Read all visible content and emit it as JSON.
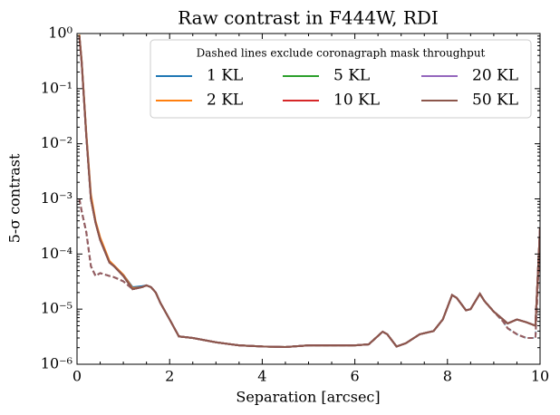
{
  "chart_data": {
    "type": "line",
    "title": "Raw contrast in F444W, RDI",
    "xlabel": "Separation [arcsec]",
    "ylabel": "5-σ contrast",
    "legend_title": "Dashed lines exclude coronagraph mask throughput",
    "legend_loc": "upper right",
    "legend_columns": 3,
    "log_y": true,
    "xlim": [
      0,
      10
    ],
    "xticks": [
      0,
      2,
      4,
      6,
      8,
      10
    ],
    "ylim": [
      1e-06,
      1
    ],
    "yticks": [
      {
        "value": 1e-06,
        "label": "10⁻⁶"
      },
      {
        "value": 1e-05,
        "label": "10⁻⁵"
      },
      {
        "value": 0.0001,
        "label": "10⁻⁴"
      },
      {
        "value": 0.001,
        "label": "10⁻³"
      },
      {
        "value": 0.01,
        "label": "10⁻²"
      },
      {
        "value": 0.1,
        "label": "10⁻¹"
      },
      {
        "value": 1,
        "label": "10⁰"
      }
    ],
    "x": [
      0.05,
      0.1,
      0.2,
      0.3,
      0.4,
      0.5,
      0.7,
      0.8,
      1.0,
      1.2,
      1.4,
      1.5,
      1.6,
      1.7,
      1.8,
      2.0,
      2.2,
      2.5,
      3.0,
      3.5,
      4.0,
      4.5,
      5.0,
      5.5,
      6.0,
      6.3,
      6.6,
      6.7,
      6.9,
      7.1,
      7.4,
      7.7,
      7.9,
      8.1,
      8.2,
      8.4,
      8.5,
      8.7,
      8.8,
      9.0,
      9.2,
      9.3,
      9.5,
      9.7,
      9.9,
      10.0
    ],
    "series": [
      {
        "name": "1 KL",
        "color": "#1f77b4",
        "values": [
          0.95,
          0.32,
          0.015,
          0.0011,
          0.00038,
          0.00019,
          7.2e-05,
          6.1e-05,
          4.2e-05,
          2.5e-05,
          2.6e-05,
          2.7e-05,
          2.5e-05,
          2e-05,
          1.3e-05,
          6.5e-06,
          3.2e-06,
          3e-06,
          2.5e-06,
          2.2e-06,
          2.1e-06,
          2.05e-06,
          2.2e-06,
          2.2e-06,
          2.2e-06,
          2.3e-06,
          3.9e-06,
          3.5e-06,
          2.1e-06,
          2.4e-06,
          3.5e-06,
          4e-06,
          6.5e-06,
          1.8e-05,
          1.6e-05,
          9.5e-06,
          1e-05,
          1.9e-05,
          1.4e-05,
          9e-06,
          6.5e-06,
          5.5e-06,
          6.5e-06,
          5.8e-06,
          5e-06,
          0.0003
        ],
        "dashed_values": [
          0.001,
          0.0006,
          0.00025,
          6e-05,
          4e-05,
          4.5e-05,
          4e-05,
          3.8e-05,
          3.2e-05,
          2.4e-05,
          2.6e-05,
          2.7e-05,
          2.5e-05,
          2e-05,
          1.3e-05,
          6.5e-06,
          3.2e-06,
          3e-06,
          2.5e-06,
          2.2e-06,
          2.1e-06,
          2.05e-06,
          2.2e-06,
          2.2e-06,
          2.2e-06,
          2.3e-06,
          3.9e-06,
          3.5e-06,
          2.1e-06,
          2.4e-06,
          3.5e-06,
          4e-06,
          6.5e-06,
          1.8e-05,
          1.6e-05,
          9.5e-06,
          1e-05,
          1.9e-05,
          1.4e-05,
          9e-06,
          6e-06,
          4.5e-06,
          3.5e-06,
          3e-06,
          3e-06,
          0.0002
        ]
      },
      {
        "name": "2 KL",
        "color": "#ff7f0e",
        "values": [
          0.95,
          0.33,
          0.016,
          0.0012,
          0.0004,
          0.0002,
          7.5e-05,
          6.2e-05,
          4.2e-05,
          2.4e-05,
          2.5e-05,
          2.7e-05,
          2.5e-05,
          2e-05,
          1.3e-05,
          6.5e-06,
          3.2e-06,
          3e-06,
          2.5e-06,
          2.2e-06,
          2.1e-06,
          2.05e-06,
          2.2e-06,
          2.2e-06,
          2.2e-06,
          2.3e-06,
          3.9e-06,
          3.5e-06,
          2.1e-06,
          2.4e-06,
          3.5e-06,
          4e-06,
          6.5e-06,
          1.8e-05,
          1.6e-05,
          9.5e-06,
          1e-05,
          1.9e-05,
          1.4e-05,
          9e-06,
          6.5e-06,
          5.5e-06,
          6.5e-06,
          5.8e-06,
          5e-06,
          0.0003
        ],
        "dashed_values": [
          0.001,
          0.0006,
          0.00025,
          6e-05,
          4e-05,
          4.5e-05,
          4e-05,
          3.8e-05,
          3.2e-05,
          2.3e-05,
          2.5e-05,
          2.7e-05,
          2.5e-05,
          2e-05,
          1.3e-05,
          6.5e-06,
          3.2e-06,
          3e-06,
          2.5e-06,
          2.2e-06,
          2.1e-06,
          2.05e-06,
          2.2e-06,
          2.2e-06,
          2.2e-06,
          2.3e-06,
          3.9e-06,
          3.5e-06,
          2.1e-06,
          2.4e-06,
          3.5e-06,
          4e-06,
          6.5e-06,
          1.8e-05,
          1.6e-05,
          9.5e-06,
          1e-05,
          1.9e-05,
          1.4e-05,
          9e-06,
          6e-06,
          4.5e-06,
          3.5e-06,
          3e-06,
          3e-06,
          0.0002
        ]
      },
      {
        "name": "5 KL",
        "color": "#2ca02c",
        "values": [
          0.9,
          0.3,
          0.014,
          0.001,
          0.00037,
          0.00018,
          7e-05,
          6e-05,
          4e-05,
          2.3e-05,
          2.5e-05,
          2.7e-05,
          2.5e-05,
          2e-05,
          1.3e-05,
          6.5e-06,
          3.2e-06,
          3e-06,
          2.5e-06,
          2.2e-06,
          2.1e-06,
          2.05e-06,
          2.2e-06,
          2.2e-06,
          2.2e-06,
          2.3e-06,
          3.9e-06,
          3.5e-06,
          2.1e-06,
          2.4e-06,
          3.5e-06,
          4e-06,
          6.5e-06,
          1.8e-05,
          1.6e-05,
          9.5e-06,
          1e-05,
          1.9e-05,
          1.4e-05,
          9e-06,
          6.5e-06,
          5.5e-06,
          6.5e-06,
          5.8e-06,
          5e-06,
          0.0003
        ],
        "dashed_values": [
          0.001,
          0.0006,
          0.00025,
          6e-05,
          4e-05,
          4.5e-05,
          4e-05,
          3.8e-05,
          3.2e-05,
          2.3e-05,
          2.5e-05,
          2.7e-05,
          2.5e-05,
          2e-05,
          1.3e-05,
          6.5e-06,
          3.2e-06,
          3e-06,
          2.5e-06,
          2.2e-06,
          2.1e-06,
          2.05e-06,
          2.2e-06,
          2.2e-06,
          2.2e-06,
          2.3e-06,
          3.9e-06,
          3.5e-06,
          2.1e-06,
          2.4e-06,
          3.5e-06,
          4e-06,
          6.5e-06,
          1.8e-05,
          1.6e-05,
          9.5e-06,
          1e-05,
          1.9e-05,
          1.4e-05,
          9e-06,
          6e-06,
          4.5e-06,
          3.5e-06,
          3e-06,
          3e-06,
          0.0002
        ]
      },
      {
        "name": "10 KL",
        "color": "#d62728",
        "values": [
          0.9,
          0.3,
          0.014,
          0.001,
          0.00037,
          0.00018,
          7e-05,
          6e-05,
          4e-05,
          2.3e-05,
          2.5e-05,
          2.7e-05,
          2.5e-05,
          2e-05,
          1.3e-05,
          6.5e-06,
          3.2e-06,
          3e-06,
          2.5e-06,
          2.2e-06,
          2.1e-06,
          2.05e-06,
          2.2e-06,
          2.2e-06,
          2.2e-06,
          2.3e-06,
          3.9e-06,
          3.5e-06,
          2.1e-06,
          2.4e-06,
          3.5e-06,
          4e-06,
          6.5e-06,
          1.8e-05,
          1.6e-05,
          9.5e-06,
          1e-05,
          1.9e-05,
          1.4e-05,
          9e-06,
          6.5e-06,
          5.5e-06,
          6.5e-06,
          5.8e-06,
          5e-06,
          0.0003
        ],
        "dashed_values": [
          0.001,
          0.0006,
          0.00025,
          6e-05,
          4e-05,
          4.5e-05,
          4e-05,
          3.8e-05,
          3.2e-05,
          2.3e-05,
          2.5e-05,
          2.7e-05,
          2.5e-05,
          2e-05,
          1.3e-05,
          6.5e-06,
          3.2e-06,
          3e-06,
          2.5e-06,
          2.2e-06,
          2.1e-06,
          2.05e-06,
          2.2e-06,
          2.2e-06,
          2.2e-06,
          2.3e-06,
          3.9e-06,
          3.5e-06,
          2.1e-06,
          2.4e-06,
          3.5e-06,
          4e-06,
          6.5e-06,
          1.8e-05,
          1.6e-05,
          9.5e-06,
          1e-05,
          1.9e-05,
          1.4e-05,
          9e-06,
          6e-06,
          4.5e-06,
          3.5e-06,
          3e-06,
          3e-06,
          0.0002
        ]
      },
      {
        "name": "20 KL",
        "color": "#9467bd",
        "values": [
          0.9,
          0.3,
          0.014,
          0.001,
          0.00037,
          0.00018,
          7e-05,
          6e-05,
          4e-05,
          2.3e-05,
          2.5e-05,
          2.7e-05,
          2.5e-05,
          2e-05,
          1.3e-05,
          6.5e-06,
          3.2e-06,
          3e-06,
          2.5e-06,
          2.2e-06,
          2.1e-06,
          2.05e-06,
          2.2e-06,
          2.2e-06,
          2.2e-06,
          2.3e-06,
          3.9e-06,
          3.5e-06,
          2.1e-06,
          2.4e-06,
          3.5e-06,
          4e-06,
          6.5e-06,
          1.8e-05,
          1.6e-05,
          9.5e-06,
          1e-05,
          1.9e-05,
          1.4e-05,
          9e-06,
          6.5e-06,
          5.5e-06,
          6.5e-06,
          5.8e-06,
          5e-06,
          0.0003
        ],
        "dashed_values": [
          0.001,
          0.0006,
          0.00025,
          6e-05,
          4e-05,
          4.5e-05,
          4e-05,
          3.8e-05,
          3.2e-05,
          2.3e-05,
          2.5e-05,
          2.7e-05,
          2.5e-05,
          2e-05,
          1.3e-05,
          6.5e-06,
          3.2e-06,
          3e-06,
          2.5e-06,
          2.2e-06,
          2.1e-06,
          2.05e-06,
          2.2e-06,
          2.2e-06,
          2.2e-06,
          2.3e-06,
          3.9e-06,
          3.5e-06,
          2.1e-06,
          2.4e-06,
          3.5e-06,
          4e-06,
          6.5e-06,
          1.8e-05,
          1.6e-05,
          9.5e-06,
          1e-05,
          1.9e-05,
          1.4e-05,
          9e-06,
          6e-06,
          4.5e-06,
          3.5e-06,
          3e-06,
          3e-06,
          0.0002
        ]
      },
      {
        "name": "50 KL",
        "color": "#8c564b",
        "values": [
          0.9,
          0.3,
          0.014,
          0.001,
          0.00037,
          0.00018,
          7e-05,
          6e-05,
          4e-05,
          2.3e-05,
          2.5e-05,
          2.7e-05,
          2.5e-05,
          2e-05,
          1.3e-05,
          6.5e-06,
          3.2e-06,
          3e-06,
          2.5e-06,
          2.2e-06,
          2.1e-06,
          2.05e-06,
          2.2e-06,
          2.2e-06,
          2.2e-06,
          2.3e-06,
          3.9e-06,
          3.5e-06,
          2.1e-06,
          2.4e-06,
          3.5e-06,
          4e-06,
          6.5e-06,
          1.8e-05,
          1.6e-05,
          9.5e-06,
          1e-05,
          1.9e-05,
          1.4e-05,
          9e-06,
          6.5e-06,
          5.5e-06,
          6.5e-06,
          5.8e-06,
          5e-06,
          0.0003
        ],
        "dashed_values": [
          0.001,
          0.0006,
          0.00025,
          6e-05,
          4e-05,
          4.5e-05,
          4e-05,
          3.8e-05,
          3.2e-05,
          2.3e-05,
          2.5e-05,
          2.7e-05,
          2.5e-05,
          2e-05,
          1.3e-05,
          6.5e-06,
          3.2e-06,
          3e-06,
          2.5e-06,
          2.2e-06,
          2.1e-06,
          2.05e-06,
          2.2e-06,
          2.2e-06,
          2.2e-06,
          2.3e-06,
          3.9e-06,
          3.5e-06,
          2.1e-06,
          2.4e-06,
          3.5e-06,
          4e-06,
          6.5e-06,
          1.8e-05,
          1.6e-05,
          9.5e-06,
          1e-05,
          1.9e-05,
          1.4e-05,
          9e-06,
          6e-06,
          4.5e-06,
          3.5e-06,
          3e-06,
          3e-06,
          0.0002
        ]
      }
    ]
  }
}
